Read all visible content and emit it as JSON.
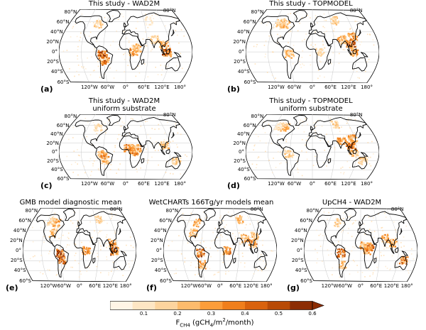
{
  "panels": [
    {
      "label": "(a)",
      "title": "This study - WAD2M",
      "title2": ""
    },
    {
      "label": "(b)",
      "title": "This study - TOPMODEL",
      "title2": ""
    },
    {
      "label": "(c)",
      "title": "This study - WAD2M",
      "title2": "uniform substrate"
    },
    {
      "label": "(d)",
      "title": "This study - TOPMODEL",
      "title2": "uniform substrate"
    },
    {
      "label": "(e)",
      "title": "GMB model diagnostic mean",
      "title2": ""
    },
    {
      "label": "(f)",
      "title": "WetCHARTs 166Tg/yr models mean",
      "title2": ""
    },
    {
      "label": "(g)",
      "title": "UpCH4 - WAD2M",
      "title2": ""
    }
  ],
  "lat_labels": [
    "80°N",
    "60°N",
    "40°N",
    "20°N",
    "0°",
    "20°S",
    "40°S",
    "60°S"
  ],
  "lon_labels": [
    "120°W",
    "60°W",
    "0°",
    "60°E",
    "120°E",
    "180°"
  ],
  "colorbar": {
    "ticks": [
      "0.1",
      "0.2",
      "0.3",
      "0.4",
      "0.5",
      "0.6"
    ],
    "tick_values": [
      0.1,
      0.2,
      0.3,
      0.4,
      0.5,
      0.6
    ],
    "min": 0.0,
    "max": 0.6,
    "label": "F",
    "label_sub": "CH4",
    "label_rest": " (gCH",
    "label_sub2": "4",
    "label_rest2": "/m",
    "label_sup": "2",
    "label_rest3": "/month)",
    "colors": [
      "#fff5e6",
      "#fee6c4",
      "#fdd49e",
      "#fdbb6c",
      "#fc9d3a",
      "#f07f1c",
      "#d9620d",
      "#b84a06",
      "#8c2d04"
    ]
  }
}
